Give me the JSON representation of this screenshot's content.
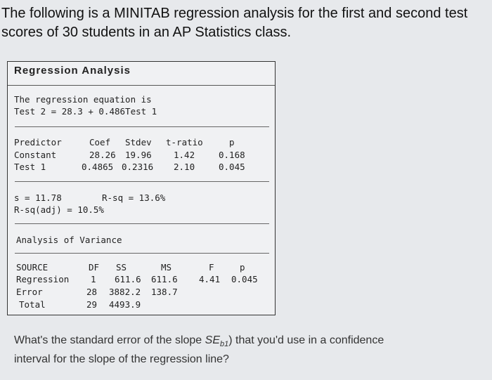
{
  "intro": {
    "line1": "The following is a MINITAB regression analysis for the first and second test",
    "line2": "scores of 30 students in an AP Statistics class."
  },
  "output": {
    "title": "Regression Analysis",
    "equation_intro": "The regression equation is",
    "equation": "Test 2 = 28.3 + 0.486Test 1",
    "coef_table": {
      "headers": [
        "Predictor",
        "Coef",
        "Stdev",
        "t-ratio",
        "p"
      ],
      "rows": [
        [
          "Constant",
          "28.26",
          "19.96",
          "1.42",
          "0.168"
        ],
        [
          "Test 1",
          "0.4865",
          "0.2316",
          "2.10",
          "0.045"
        ]
      ]
    },
    "s_line": "s = 11.78",
    "rsq_line": "R-sq = 13.6%",
    "rsq_adj_line": "R-sq(adj) = 10.5%",
    "anova_title": "Analysis of Variance",
    "anova_table": {
      "headers": [
        "SOURCE",
        "DF",
        "SS",
        "MS",
        "F",
        "p"
      ],
      "rows": [
        [
          "Regression",
          "1",
          "611.6",
          "611.6",
          "4.41",
          "0.045"
        ],
        [
          "Error",
          "28",
          "3882.2",
          "138.7",
          "",
          ""
        ],
        [
          "Total",
          "29",
          "4493.9",
          "",
          "",
          ""
        ]
      ]
    }
  },
  "question": {
    "part1": "What's the standard error of the slope ",
    "se_symbol": "SE",
    "se_subscript": "b1",
    "part2": ") that you'd use in a confidence",
    "line2": "interval for the slope of the regression line?"
  }
}
